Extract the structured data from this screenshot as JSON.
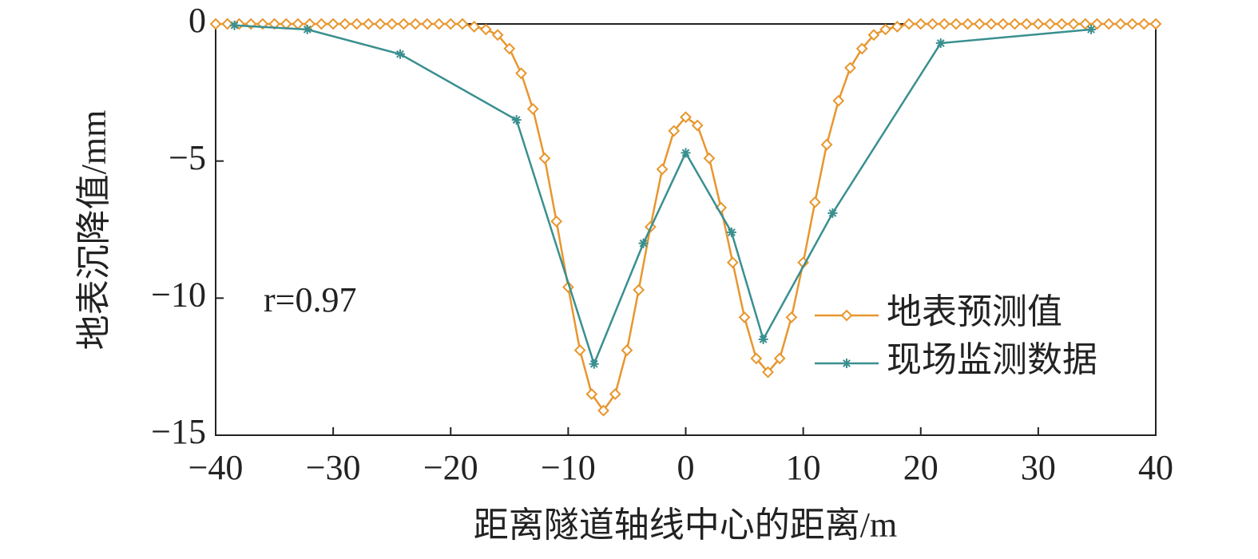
{
  "chart_data": {
    "type": "line",
    "xlabel": "距离隧道轴线中心的距离/m",
    "ylabel": "地表沉降值/mm",
    "annotation": "r=0.97",
    "xlim": [
      -40,
      40
    ],
    "xticks": [
      {
        "value": -40,
        "label": "−40"
      },
      {
        "value": -30,
        "label": "−30"
      },
      {
        "value": -20,
        "label": "−20"
      },
      {
        "value": -10,
        "label": "−10"
      },
      0,
      10,
      20,
      30,
      40
    ],
    "ylim": [
      -15,
      0
    ],
    "yticks": [
      0,
      {
        "value": -5,
        "label": "−5"
      },
      {
        "value": -10,
        "label": "−10"
      },
      {
        "value": -15,
        "label": "−15"
      }
    ],
    "legend": "lower right",
    "series": [
      {
        "name": "地表预测值",
        "color": "#e8962e",
        "marker": "diamond",
        "x": [
          -40,
          -39,
          -38,
          -37,
          -36,
          -35,
          -34,
          -33,
          -32,
          -31,
          -30,
          -29,
          -28,
          -27,
          -26,
          -25,
          -24,
          -23,
          -22,
          -21,
          -20,
          -19,
          -18,
          -17,
          -16,
          -15,
          -14,
          -13,
          -12,
          -11,
          -10,
          -9,
          -8,
          -7,
          -6,
          -5,
          -4,
          -3,
          -2,
          -1,
          0,
          1,
          2,
          3,
          4,
          5,
          6,
          7,
          8,
          9,
          10,
          11,
          12,
          13,
          14,
          15,
          16,
          17,
          18,
          19,
          20,
          21,
          22,
          23,
          24,
          25,
          26,
          27,
          28,
          29,
          30,
          31,
          32,
          33,
          34,
          35,
          36,
          37,
          38,
          39,
          40
        ],
        "values": [
          0,
          0,
          0,
          0,
          0,
          0,
          0,
          0,
          0,
          0,
          0,
          0,
          0,
          0,
          0,
          0,
          0,
          0,
          0,
          0,
          0,
          0,
          -0.1,
          -0.2,
          -0.4,
          -0.9,
          -1.8,
          -3.1,
          -4.9,
          -7.2,
          -9.6,
          -11.9,
          -13.5,
          -14.1,
          -13.5,
          -11.9,
          -9.7,
          -7.4,
          -5.3,
          -3.9,
          -3.4,
          -3.7,
          -4.9,
          -6.7,
          -8.7,
          -10.7,
          -12.2,
          -12.7,
          -12.2,
          -10.7,
          -8.7,
          -6.5,
          -4.4,
          -2.8,
          -1.6,
          -0.9,
          -0.4,
          -0.2,
          -0.1,
          0,
          0,
          0,
          0,
          0,
          0,
          0,
          0,
          0,
          0,
          0,
          0,
          0,
          0,
          0,
          0,
          0,
          0,
          0,
          0,
          0,
          0
        ]
      },
      {
        "name": "现场监测数据",
        "color": "#3a8f8f",
        "marker": "asterisk",
        "x": [
          -38.4,
          -32.2,
          -24.3,
          -14.4,
          -7.8,
          -3.6,
          0,
          3.9,
          6.6,
          12.5,
          21.7,
          34.5
        ],
        "values": [
          -0.05,
          -0.2,
          -1.1,
          -3.5,
          -12.4,
          -8.0,
          -4.7,
          -7.6,
          -11.5,
          -6.9,
          -0.7,
          -0.2
        ]
      }
    ]
  }
}
